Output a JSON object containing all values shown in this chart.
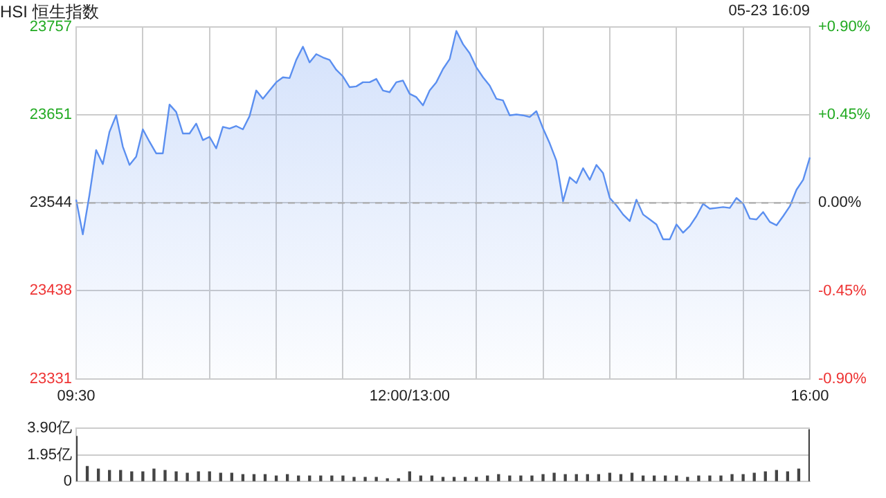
{
  "chart_data": [
    {
      "type": "area",
      "title": "HSI 恒生指数",
      "annotations": [
        "05-23 16:09"
      ],
      "categories": [
        "09:30",
        null,
        null,
        null,
        null,
        null,
        null,
        null,
        null,
        null,
        null,
        null,
        null,
        null,
        null,
        null,
        null,
        null,
        null,
        null,
        null,
        null,
        null,
        null,
        null,
        null,
        null,
        null,
        null,
        null,
        null,
        null,
        null,
        null,
        null,
        null,
        null,
        null,
        null,
        null,
        null,
        null,
        null,
        null,
        null,
        null,
        null,
        null,
        null,
        null,
        "12:00/13:00",
        null,
        null,
        null,
        null,
        null,
        null,
        null,
        null,
        null,
        null,
        null,
        null,
        null,
        null,
        null,
        null,
        null,
        null,
        null,
        null,
        null,
        null,
        null,
        null,
        null,
        null,
        null,
        null,
        null,
        null,
        null,
        null,
        null,
        null,
        null,
        null,
        null,
        null,
        null,
        null,
        null,
        null,
        null,
        null,
        null,
        null,
        null,
        null,
        null,
        null,
        null,
        null,
        null,
        null,
        null,
        null,
        null,
        null,
        null,
        "16:00"
      ],
      "series": [
        {
          "color": "#5b8ff0",
          "values": [
            23548,
            23506,
            23554,
            23608,
            23591,
            23630,
            23650,
            23612,
            23590,
            23600,
            23633,
            23618,
            23604,
            23604,
            23663,
            23654,
            23628,
            23628,
            23640,
            23620,
            23624,
            23610,
            23636,
            23634,
            23637,
            23633,
            23649,
            23680,
            23670,
            23680,
            23690,
            23696,
            23695,
            23717,
            23733,
            23714,
            23724,
            23720,
            23717,
            23705,
            23697,
            23684,
            23685,
            23690,
            23690,
            23694,
            23680,
            23678,
            23690,
            23692,
            23676,
            23672,
            23662,
            23680,
            23690,
            23706,
            23718,
            23752,
            23736,
            23725,
            23708,
            23696,
            23686,
            23670,
            23668,
            23650,
            23651,
            23650,
            23648,
            23655,
            23634,
            23616,
            23595,
            23546,
            23575,
            23568,
            23586,
            23572,
            23590,
            23580,
            23550,
            23541,
            23530,
            23522,
            23548,
            23530,
            23524,
            23518,
            23500,
            23500,
            23518,
            23508,
            23516,
            23528,
            23543,
            23537,
            23538,
            23539,
            23538,
            23550,
            23543,
            23525,
            23524,
            23533,
            23521,
            23517,
            23528,
            23540,
            23560,
            23572,
            23599
          ]
        }
      ],
      "ylim": [
        23331,
        23757
      ],
      "yticks": [
        23331,
        23438,
        23544,
        23651,
        23757
      ],
      "y2lim": [
        -0.9,
        0.9
      ],
      "y2ticks": [
        {
          "value": -0.9,
          "label": "-0.90%"
        },
        {
          "value": -0.45,
          "label": "-0.45%"
        },
        {
          "value": 0,
          "label": "0.00%"
        },
        {
          "value": 0.45,
          "label": "+0.45%"
        },
        {
          "value": 0.9,
          "label": "+0.90%"
        }
      ],
      "ref_lines": [
        {
          "axis": "y",
          "value": 23544,
          "line_style": "dashed",
          "color": "#aaaaaa"
        }
      ],
      "grid": true,
      "legend": false,
      "marker": "none",
      "line_style": "solid"
    },
    {
      "type": "bar",
      "categories": [
        null,
        null,
        null,
        null,
        null,
        null,
        null,
        null,
        null,
        null,
        null,
        null,
        null,
        null,
        null,
        null,
        null,
        null,
        null,
        null,
        null,
        null,
        null,
        null,
        null,
        null,
        null,
        null,
        null,
        null,
        null,
        null,
        null,
        null,
        null,
        null,
        null,
        null,
        null,
        null,
        null,
        null,
        null,
        null,
        null,
        null,
        null,
        null,
        null,
        null,
        null,
        null,
        null,
        null,
        null,
        null,
        null,
        null,
        null,
        null,
        null,
        null,
        null,
        null,
        null,
        null,
        null
      ],
      "values": [
        3.3,
        1.1,
        0.9,
        0.8,
        0.8,
        0.7,
        0.7,
        0.9,
        0.8,
        0.7,
        0.6,
        0.7,
        0.7,
        0.6,
        0.6,
        0.5,
        0.5,
        0.5,
        0.4,
        0.5,
        0.4,
        0.4,
        0.4,
        0.4,
        0.4,
        0.3,
        0.3,
        0.3,
        0.2,
        0.2,
        0.7,
        0.4,
        0.4,
        0.3,
        0.3,
        0.3,
        0.3,
        0.4,
        0.5,
        0.4,
        0.4,
        0.4,
        0.5,
        0.6,
        0.5,
        0.5,
        0.5,
        0.5,
        0.6,
        0.5,
        0.6,
        0.4,
        0.4,
        0.4,
        0.4,
        0.3,
        0.4,
        0.4,
        0.4,
        0.5,
        0.5,
        0.6,
        0.7,
        0.8,
        0.7,
        0.9,
        3.8
      ],
      "color": "#444444",
      "ylim": [
        0,
        3.9
      ],
      "yticks": [
        0,
        {
          "value": 1.95,
          "label": "1.95亿"
        },
        {
          "value": 3.9,
          "label": "3.90亿"
        }
      ],
      "grid": "y",
      "legend": false,
      "tick_labels": "y"
    }
  ]
}
